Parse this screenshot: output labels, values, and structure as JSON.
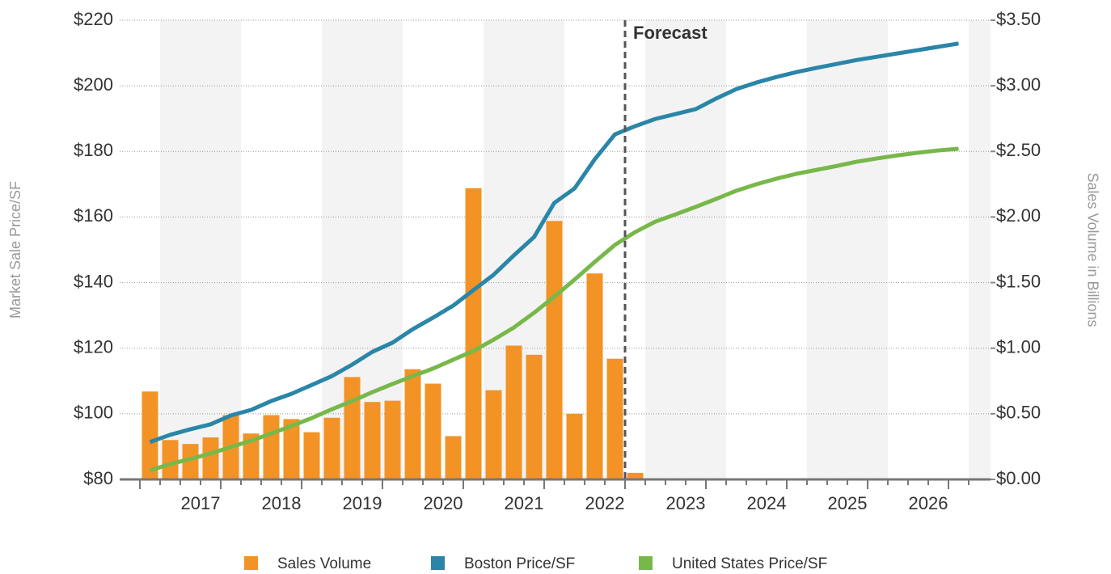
{
  "chart_data": {
    "type": "bar-line",
    "y_axis_label": "Market Sale Price/SF",
    "y2_axis_label": "Sales Volume in Billions",
    "annotation": "Forecast",
    "categories": [
      null,
      null,
      null,
      null,
      null,
      null,
      null,
      null,
      null,
      null,
      null,
      null,
      null,
      null,
      null,
      null,
      null,
      null,
      null,
      null,
      null,
      null,
      null,
      null,
      null,
      null,
      null,
      null,
      null,
      null,
      null,
      null,
      null,
      null,
      null,
      null,
      null,
      null,
      null,
      null,
      null
    ],
    "year_labels": [
      "2017",
      "2018",
      "2019",
      "2020",
      "2021",
      "2022",
      "2023",
      "2024",
      "2025",
      "2026"
    ],
    "ylim": [
      80,
      220
    ],
    "yticks": [
      {
        "value": 80,
        "label": "$80"
      },
      {
        "value": 100,
        "label": "$100"
      },
      {
        "value": 120,
        "label": "$120"
      },
      {
        "value": 140,
        "label": "$140"
      },
      {
        "value": 160,
        "label": "$160"
      },
      {
        "value": 180,
        "label": "$180"
      },
      {
        "value": 200,
        "label": "$200"
      },
      {
        "value": 220,
        "label": "$220"
      }
    ],
    "y2lim": [
      0,
      3.5
    ],
    "y2ticks": [
      {
        "value": 0,
        "label": "$0.00"
      },
      {
        "value": 0.5,
        "label": "$0.50"
      },
      {
        "value": 1,
        "label": "$1.00"
      },
      {
        "value": 1.5,
        "label": "$1.50"
      },
      {
        "value": 2,
        "label": "$2.00"
      },
      {
        "value": 2.5,
        "label": "$2.50"
      },
      {
        "value": 3,
        "label": "$3.00"
      },
      {
        "value": 3.5,
        "label": "$3.50"
      }
    ],
    "grid": true,
    "series": [
      {
        "name": "Sales Volume",
        "type": "bar",
        "axis": "y2",
        "color": "#f39325",
        "values": [
          0.67,
          0.3,
          0.27,
          0.32,
          0.49,
          0.35,
          0.49,
          0.46,
          0.36,
          0.47,
          0.78,
          0.59,
          0.6,
          0.84,
          0.73,
          0.33,
          2.22,
          0.68,
          1.02,
          0.95,
          1.97,
          0.5,
          1.57,
          0.92,
          0.05,
          null,
          null,
          null,
          null,
          null,
          null,
          null,
          null,
          null,
          null,
          null,
          null,
          null,
          null,
          null,
          null
        ]
      },
      {
        "name": "Boston Price/SF",
        "type": "line",
        "color": "#2a86a8",
        "values": [
          91.4,
          93.6,
          95.3,
          96.8,
          99.5,
          101.2,
          103.9,
          106.1,
          108.8,
          111.5,
          115.0,
          118.9,
          121.7,
          125.8,
          129.3,
          133.0,
          137.7,
          142.4,
          148.3,
          153.9,
          164.3,
          168.7,
          177.6,
          185.2,
          187.7,
          189.9,
          191.4,
          192.9,
          196.1,
          199.0,
          201.0,
          202.7,
          204.2,
          205.5,
          206.7,
          207.9,
          208.9,
          209.9,
          210.9,
          211.9,
          212.9
        ]
      },
      {
        "name": "United States Price/SF",
        "type": "line",
        "color": "#78b84a",
        "values": [
          82.7,
          84.7,
          86.2,
          87.9,
          89.9,
          91.8,
          94.0,
          96.3,
          98.7,
          101.4,
          103.9,
          106.6,
          109.1,
          111.5,
          113.8,
          116.5,
          119.2,
          122.6,
          126.3,
          130.8,
          135.7,
          140.9,
          146.3,
          151.5,
          155.4,
          158.6,
          160.8,
          163.1,
          165.5,
          168.0,
          170.0,
          171.7,
          173.2,
          174.4,
          175.6,
          176.9,
          177.9,
          178.8,
          179.6,
          180.3,
          180.8
        ]
      }
    ]
  }
}
